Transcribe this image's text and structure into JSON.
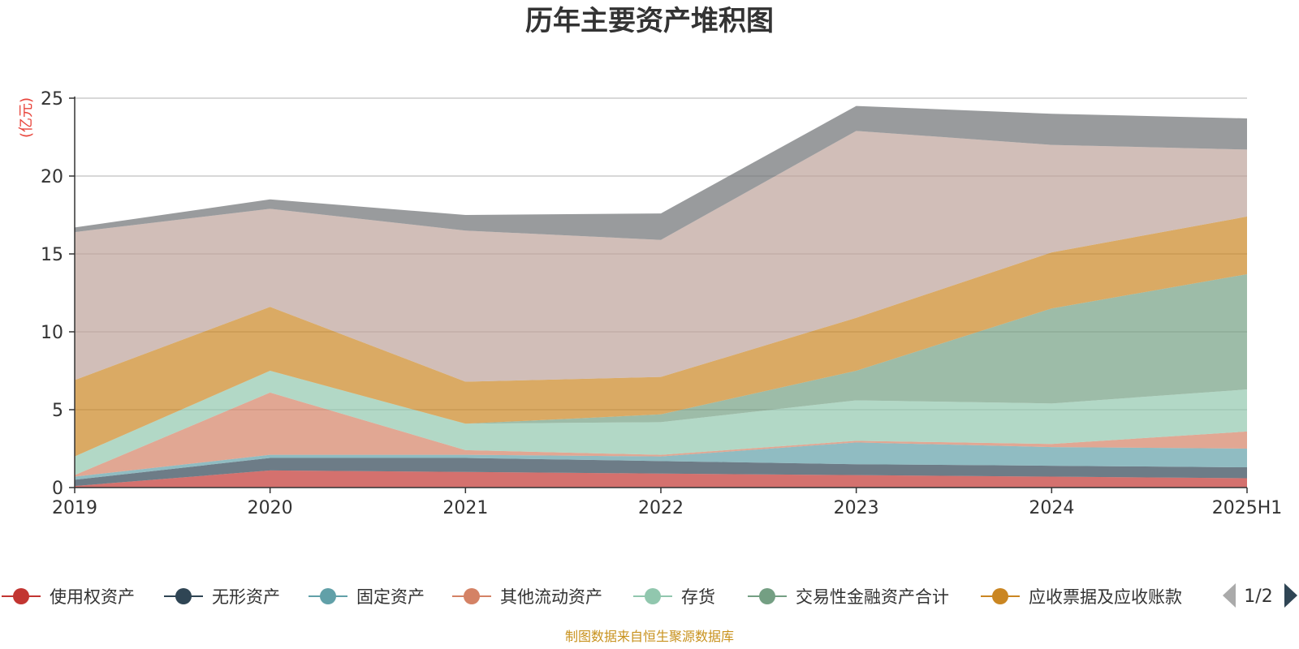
{
  "chart_data": {
    "type": "area",
    "stacked": true,
    "title": "历年主要资产堆积图",
    "unit_label": "(亿元)",
    "source_note": "制图数据来自恒生聚源数据库",
    "categories": [
      "2019",
      "2020",
      "2021",
      "2022",
      "2023",
      "2024",
      "2025H1"
    ],
    "ylim": [
      0,
      25
    ],
    "yticks": [
      0,
      5,
      10,
      15,
      20,
      25
    ],
    "grid": true,
    "legend_position": "bottom",
    "legend_page": "1/2",
    "series": [
      {
        "name": "使用权资产",
        "color": "#c23531",
        "values": [
          0.1,
          1.1,
          1.0,
          0.9,
          0.8,
          0.7,
          0.6
        ],
        "visible_in_legend": true
      },
      {
        "name": "无形资产",
        "color": "#2f4554",
        "values": [
          0.4,
          0.8,
          0.9,
          0.8,
          0.7,
          0.7,
          0.7
        ],
        "visible_in_legend": true
      },
      {
        "name": "固定资产",
        "color": "#61a0a8",
        "values": [
          0.2,
          0.2,
          0.2,
          0.3,
          1.4,
          1.2,
          1.2
        ],
        "visible_in_legend": true
      },
      {
        "name": "其他流动资产",
        "color": "#d48265",
        "values": [
          0.1,
          4.0,
          0.3,
          0.1,
          0.1,
          0.2,
          1.1
        ],
        "visible_in_legend": true
      },
      {
        "name": "存货",
        "color": "#91c7ae",
        "values": [
          1.2,
          1.4,
          1.7,
          2.1,
          2.6,
          2.6,
          2.7
        ],
        "visible_in_legend": true
      },
      {
        "name": "交易性金融资产合计",
        "color": "#749f83",
        "values": [
          0.0,
          0.0,
          0.0,
          0.5,
          1.9,
          6.1,
          7.4
        ],
        "visible_in_legend": true
      },
      {
        "name": "应收票据及应收账款",
        "color": "#ca8622",
        "values": [
          4.9,
          4.1,
          2.7,
          2.4,
          3.4,
          3.6,
          3.7
        ],
        "visible_in_legend": true
      },
      {
        "name": "",
        "color": "#bda29a",
        "values": [
          9.5,
          6.3,
          9.7,
          8.8,
          12.0,
          6.9,
          4.3
        ],
        "visible_in_legend": false
      },
      {
        "name": "",
        "color": "#6e7074",
        "values": [
          0.3,
          0.6,
          1.0,
          1.7,
          1.6,
          2.0,
          2.0
        ],
        "visible_in_legend": false
      }
    ]
  }
}
